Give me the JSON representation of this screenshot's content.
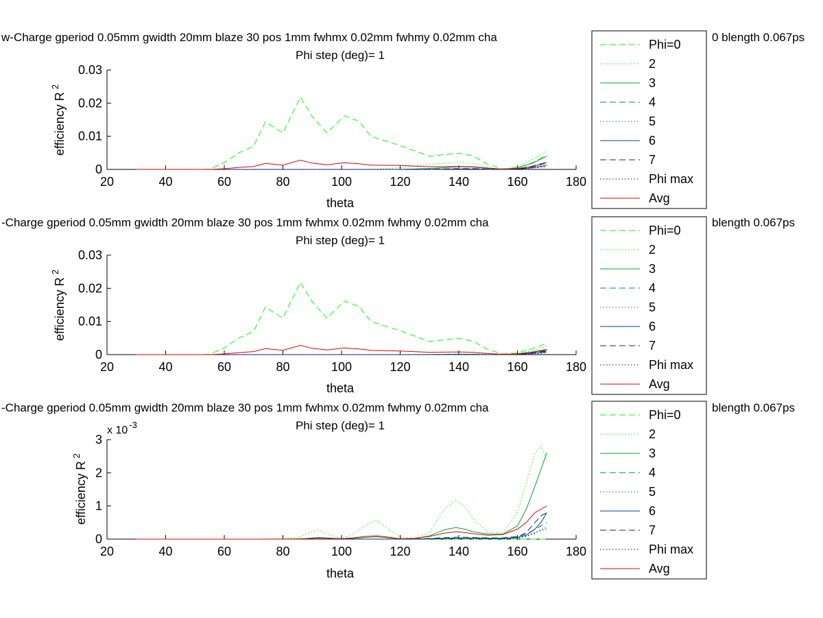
{
  "legend_entries": [
    "Phi=0",
    "2",
    "3",
    "4",
    "5",
    "6",
    "7",
    "Phi max",
    "Avg"
  ],
  "series_styles": [
    {
      "color": "#00ff00",
      "dash": "9,5"
    },
    {
      "color": "#00ff00",
      "dash": "1.5,3"
    },
    {
      "color": "#00a030",
      "dash": ""
    },
    {
      "color": "#008080",
      "dash": "9,5"
    },
    {
      "color": "#0066cc",
      "dash": "1.5,3"
    },
    {
      "color": "#0040a0",
      "dash": ""
    },
    {
      "color": "#202060",
      "dash": "9,5"
    },
    {
      "color": "#000080",
      "dash": "1.5,3"
    },
    {
      "color": "#e00000",
      "dash": ""
    }
  ],
  "chart_data": [
    {
      "type": "line",
      "title_line1": "w-Charge gperiod 0.05mm gwidth 20mm blaze 30 pos 1mm fwhmx 0.02mm fwhmy 0.02mm cha",
      "title_line1_right": "0 blength 0.067ps",
      "title_line2": "Phi step (deg)= 1",
      "xlabel": "theta",
      "ylabel": "efficiency R",
      "ylabel_sup": "2",
      "xlim": [
        20,
        180
      ],
      "ylim": [
        0,
        0.03
      ],
      "xticks": [
        "20",
        "40",
        "60",
        "80",
        "100",
        "120",
        "140",
        "160",
        "180"
      ],
      "yticks": [
        "0",
        "0.01",
        "0.02",
        "0.03"
      ],
      "y_exponent": "",
      "x": [
        30,
        40,
        50,
        55,
        60,
        65,
        70,
        74,
        80,
        86,
        90,
        95,
        101,
        106,
        110,
        120,
        130,
        140,
        145,
        150,
        155,
        160,
        165,
        170
      ],
      "series": [
        {
          "name": "Phi=0",
          "values": [
            0,
            0,
            0,
            0.0001,
            0.002,
            0.005,
            0.007,
            0.0143,
            0.011,
            0.0218,
            0.016,
            0.011,
            0.0162,
            0.0145,
            0.01,
            0.0072,
            0.004,
            0.0049,
            0.004,
            0.0015,
            0.0002,
            0.0005,
            0.002,
            0.0043
          ]
        },
        {
          "name": "2",
          "values": [
            0,
            0,
            0,
            0,
            0,
            0,
            0,
            0,
            0,
            0,
            0,
            0,
            0,
            0,
            0,
            0.0005,
            0.0015,
            0.0022,
            0.0018,
            0.0006,
            0,
            0.0008,
            0.003,
            0.0055
          ]
        },
        {
          "name": "3",
          "values": [
            0,
            0,
            0,
            0,
            0,
            0,
            0,
            0,
            0,
            0,
            0,
            0,
            0,
            0,
            0,
            0,
            0.0003,
            0.0008,
            0.0007,
            0.0003,
            0,
            0.0005,
            0.0018,
            0.004
          ]
        },
        {
          "name": "4",
          "values": [
            0,
            0,
            0,
            0,
            0,
            0,
            0,
            0,
            0,
            0,
            0,
            0,
            0,
            0,
            0,
            0,
            0.0001,
            0.0003,
            0.0003,
            0.0001,
            0,
            0.0002,
            0.001,
            0.0022
          ]
        },
        {
          "name": "5",
          "values": [
            0,
            0,
            0,
            0,
            0,
            0,
            0,
            0,
            0,
            0,
            0,
            0,
            0,
            0,
            0,
            0,
            0.0001,
            0.0002,
            0.0002,
            0.0001,
            0,
            0.0002,
            0.0008,
            0.0015
          ]
        },
        {
          "name": "6",
          "values": [
            0,
            0,
            0,
            0,
            0,
            0,
            0,
            0,
            0,
            0,
            0,
            0,
            0,
            0,
            0,
            0,
            0,
            0.0001,
            0.0001,
            0,
            0,
            0.0001,
            0.0005,
            0.0012
          ]
        },
        {
          "name": "7",
          "values": [
            0,
            0,
            0,
            0,
            0,
            0,
            0,
            0,
            0,
            0,
            0,
            0,
            0,
            0,
            0,
            0,
            0,
            0.0001,
            0.0001,
            0,
            0,
            0.0001,
            0.0007,
            0.002
          ]
        },
        {
          "name": "Phi max",
          "values": [
            0,
            0,
            0,
            0,
            0,
            0,
            0,
            0,
            0,
            0,
            0,
            0,
            0,
            0,
            0,
            0,
            0,
            0,
            0,
            0,
            0,
            0.0001,
            0.0004,
            0.0008
          ]
        },
        {
          "name": "Avg",
          "values": [
            0,
            0,
            0,
            0,
            0.0002,
            0.0006,
            0.0009,
            0.0018,
            0.0013,
            0.0028,
            0.0019,
            0.0014,
            0.002,
            0.0017,
            0.0013,
            0.0012,
            0.0008,
            0.0009,
            0.0008,
            0.0004,
            0.0001,
            0.0003,
            0.0009,
            0.0021
          ]
        }
      ]
    },
    {
      "type": "line",
      "title_line1": "-Charge gperiod 0.05mm gwidth 20mm blaze 30 pos 1mm fwhmx 0.02mm fwhmy 0.02mm cha",
      "title_line1_right": "blength 0.067ps",
      "title_line2": "Phi step (deg)= 1",
      "xlabel": "theta",
      "ylabel": "efficiency R",
      "ylabel_sup": "2",
      "xlim": [
        20,
        180
      ],
      "ylim": [
        0,
        0.03
      ],
      "xticks": [
        "20",
        "40",
        "60",
        "80",
        "100",
        "120",
        "140",
        "160",
        "180"
      ],
      "yticks": [
        "0",
        "0.01",
        "0.02",
        "0.03"
      ],
      "y_exponent": "",
      "x": [
        30,
        40,
        50,
        55,
        60,
        65,
        70,
        74,
        80,
        86,
        90,
        95,
        101,
        106,
        110,
        120,
        130,
        140,
        145,
        150,
        155,
        160,
        165,
        170
      ],
      "series": [
        {
          "name": "Phi=0",
          "values": [
            0,
            0,
            0,
            0.0001,
            0.002,
            0.005,
            0.007,
            0.0143,
            0.011,
            0.0218,
            0.016,
            0.011,
            0.0162,
            0.0145,
            0.01,
            0.0072,
            0.004,
            0.0049,
            0.004,
            0.0015,
            0.0002,
            0.0005,
            0.0018,
            0.0034
          ]
        },
        {
          "name": "2",
          "values": [
            0,
            0,
            0,
            0,
            0,
            0,
            0,
            0,
            0,
            0,
            0,
            0,
            0,
            0,
            0,
            0,
            0.0001,
            0.0002,
            0.0002,
            0.0001,
            0,
            0.0003,
            0.0012,
            0.0025
          ]
        },
        {
          "name": "3",
          "values": [
            0,
            0,
            0,
            0,
            0,
            0,
            0,
            0,
            0,
            0,
            0,
            0,
            0,
            0,
            0,
            0,
            0,
            0.0001,
            0.0001,
            0,
            0,
            0.0002,
            0.0008,
            0.0016
          ]
        },
        {
          "name": "4",
          "values": [
            0,
            0,
            0,
            0,
            0,
            0,
            0,
            0,
            0,
            0,
            0,
            0,
            0,
            0,
            0,
            0,
            0,
            0.0001,
            0.0001,
            0,
            0,
            0.0001,
            0.0005,
            0.0012
          ]
        },
        {
          "name": "5",
          "values": [
            0,
            0,
            0,
            0,
            0,
            0,
            0,
            0,
            0,
            0,
            0,
            0,
            0,
            0,
            0,
            0,
            0,
            0,
            0,
            0,
            0,
            0.0001,
            0.0004,
            0.0009
          ]
        },
        {
          "name": "6",
          "values": [
            0,
            0,
            0,
            0,
            0,
            0,
            0,
            0,
            0,
            0,
            0,
            0,
            0,
            0,
            0,
            0,
            0,
            0,
            0,
            0,
            0,
            0.0001,
            0.0004,
            0.0008
          ]
        },
        {
          "name": "7",
          "values": [
            0,
            0,
            0,
            0,
            0,
            0,
            0,
            0,
            0,
            0,
            0,
            0,
            0,
            0,
            0,
            0,
            0,
            0,
            0,
            0,
            0,
            0.0001,
            0.0005,
            0.001
          ]
        },
        {
          "name": "Phi max",
          "values": [
            0,
            0,
            0,
            0,
            0,
            0,
            0,
            0,
            0,
            0,
            0,
            0,
            0,
            0,
            0,
            0,
            0,
            0,
            0,
            0,
            0,
            0,
            0.0002,
            0.0005
          ]
        },
        {
          "name": "Avg",
          "values": [
            0,
            0,
            0,
            0,
            0.0002,
            0.0006,
            0.0009,
            0.0018,
            0.0013,
            0.0028,
            0.0019,
            0.0014,
            0.002,
            0.0017,
            0.0013,
            0.0011,
            0.0007,
            0.0008,
            0.0007,
            0.0003,
            0.0001,
            0.0002,
            0.0007,
            0.0014
          ]
        }
      ]
    },
    {
      "type": "line",
      "title_line1": "-Charge gperiod 0.05mm gwidth 20mm blaze 30 pos 1mm fwhmx 0.02mm fwhmy 0.02mm cha",
      "title_line1_right": "blength 0.067ps",
      "title_line2": "Phi step (deg)= 1",
      "xlabel": "theta",
      "ylabel": "efficiency R",
      "ylabel_sup": "2",
      "xlim": [
        20,
        180
      ],
      "ylim": [
        0,
        0.003
      ],
      "xticks": [
        "20",
        "40",
        "60",
        "80",
        "100",
        "120",
        "140",
        "160",
        "180"
      ],
      "yticks": [
        "0",
        "1",
        "2",
        "3"
      ],
      "y_exponent": "x 10",
      "y_exponent_sup": "-3",
      "x": [
        30,
        40,
        50,
        60,
        70,
        80,
        85,
        88,
        92,
        96,
        100,
        104,
        108,
        112,
        116,
        120,
        125,
        130,
        135,
        139,
        142,
        145,
        150,
        155,
        160,
        163,
        166,
        168,
        170
      ],
      "series": [
        {
          "name": "Phi=0",
          "values": [
            0,
            0,
            0,
            0,
            0,
            0,
            0,
            0,
            0,
            0,
            0,
            0,
            0,
            0,
            0,
            0,
            0,
            0,
            0,
            0,
            0,
            0,
            0,
            0,
            0,
            0,
            0,
            0,
            0
          ]
        },
        {
          "name": "2",
          "values": [
            0,
            0,
            0,
            0,
            0,
            2e-05,
            5e-05,
            0.00015,
            0.00028,
            0.00012,
            2e-05,
            0.00015,
            0.0004,
            0.00058,
            0.0003,
            5e-05,
            3e-05,
            0.0002,
            0.0009,
            0.00118,
            0.001,
            0.0006,
            0.0002,
            0.0002,
            0.0008,
            0.0017,
            0.0026,
            0.0028,
            0.0024
          ]
        },
        {
          "name": "3",
          "values": [
            0,
            0,
            0,
            0,
            0,
            0,
            1e-05,
            2e-05,
            5e-05,
            3e-05,
            1e-05,
            2e-05,
            5e-05,
            7e-05,
            4e-05,
            1e-05,
            2e-05,
            0.0001,
            0.00028,
            0.00035,
            0.0003,
            0.00022,
            0.00015,
            0.00015,
            0.0004,
            0.0009,
            0.0016,
            0.0021,
            0.0026
          ]
        },
        {
          "name": "4",
          "values": [
            0,
            0,
            0,
            0,
            0,
            0,
            0,
            0,
            0,
            0,
            0,
            0,
            0,
            0,
            0,
            0,
            0,
            2e-05,
            5e-05,
            6e-05,
            6e-05,
            5e-05,
            4e-05,
            4e-05,
            8e-05,
            0.00015,
            0.0003,
            0.0004,
            0.0005
          ]
        },
        {
          "name": "5",
          "values": [
            0,
            0,
            0,
            0,
            0,
            0,
            0,
            0,
            0,
            0,
            0,
            0,
            0,
            0,
            0,
            0,
            0,
            1e-05,
            3e-05,
            4e-05,
            4e-05,
            3e-05,
            3e-05,
            3e-05,
            6e-05,
            0.0001,
            0.0002,
            0.00025,
            0.0003
          ]
        },
        {
          "name": "6",
          "values": [
            0,
            0,
            0,
            0,
            0,
            0,
            0,
            0,
            0,
            0,
            0,
            0,
            0,
            0,
            0,
            0,
            0,
            1e-05,
            2e-05,
            3e-05,
            3e-05,
            3e-05,
            2e-05,
            2e-05,
            5e-05,
            0.00012,
            0.0003,
            0.0005,
            0.0008
          ]
        },
        {
          "name": "7",
          "values": [
            0,
            0,
            0,
            0,
            0,
            0,
            0,
            0,
            0,
            0,
            0,
            0,
            0,
            0,
            0,
            0,
            0,
            1e-05,
            2e-05,
            3e-05,
            3e-05,
            3e-05,
            2e-05,
            2e-05,
            6e-05,
            0.0002,
            0.0005,
            0.0007,
            0.0008
          ]
        },
        {
          "name": "Phi max",
          "values": [
            0,
            0,
            0,
            0,
            0,
            0,
            0,
            0,
            0,
            0,
            0,
            0,
            0,
            0,
            0,
            0,
            0,
            0,
            1e-05,
            2e-05,
            2e-05,
            2e-05,
            1e-05,
            1e-05,
            3e-05,
            8e-05,
            0.00018,
            0.00028,
            0.00035
          ]
        },
        {
          "name": "Avg",
          "values": [
            0,
            0,
            0,
            0,
            0,
            0,
            0,
            1e-05,
            3e-05,
            2e-05,
            1e-05,
            4e-05,
            8e-05,
            0.0001,
            6e-05,
            1e-05,
            2e-05,
            8e-05,
            0.00018,
            0.00022,
            0.0002,
            0.00016,
            0.00012,
            0.00014,
            0.0003,
            0.0005,
            0.0008,
            0.0009,
            0.001
          ]
        }
      ]
    }
  ]
}
